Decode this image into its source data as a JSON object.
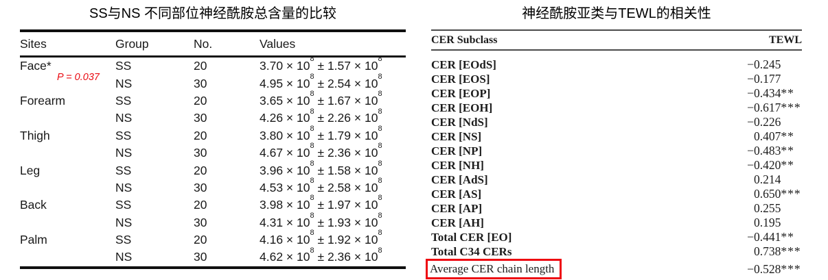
{
  "left_table": {
    "title": "SS与NS 不同部位神经酰胺总含量的比较",
    "columns": [
      "Sites",
      "Group",
      "No.",
      "Values"
    ],
    "notation": {
      "times_base": " × 10",
      "exponent": "8",
      "plus_minus": " ± "
    },
    "rows": [
      {
        "site": "Face*",
        "p_note": "P = 0.037",
        "group": "SS",
        "no": "20",
        "mean": "3.70",
        "sd": "1.57"
      },
      {
        "site": "",
        "group": "NS",
        "no": "30",
        "mean": "4.95",
        "sd": "2.54"
      },
      {
        "site": "Forearm",
        "group": "SS",
        "no": "20",
        "mean": "3.65",
        "sd": "1.67"
      },
      {
        "site": "",
        "group": "NS",
        "no": "30",
        "mean": "4.26",
        "sd": "2.26"
      },
      {
        "site": "Thigh",
        "group": "SS",
        "no": "20",
        "mean": "3.80",
        "sd": "1.79"
      },
      {
        "site": "",
        "group": "NS",
        "no": "30",
        "mean": "4.67",
        "sd": "2.36"
      },
      {
        "site": "Leg",
        "group": "SS",
        "no": "20",
        "mean": "3.96",
        "sd": "1.58"
      },
      {
        "site": "",
        "group": "NS",
        "no": "30",
        "mean": "4.53",
        "sd": "2.58"
      },
      {
        "site": "Back",
        "group": "SS",
        "no": "20",
        "mean": "3.98",
        "sd": "1.97"
      },
      {
        "site": "",
        "group": "NS",
        "no": "30",
        "mean": "4.31",
        "sd": "1.93"
      },
      {
        "site": "Palm",
        "group": "SS",
        "no": "20",
        "mean": "4.16",
        "sd": "1.92"
      },
      {
        "site": "",
        "group": "NS",
        "no": "30",
        "mean": "4.62",
        "sd": "2.36"
      }
    ],
    "annotation_color": "#ea0a12"
  },
  "right_table": {
    "title": "神经酰胺亚类与TEWL的相关性",
    "columns": [
      "CER Subclass",
      "TEWL"
    ],
    "rows": [
      {
        "label": "CER [EOdS]",
        "sign": "−",
        "value": "0.245",
        "stars": ""
      },
      {
        "label": "CER [EOS]",
        "sign": "−",
        "value": "0.177",
        "stars": ""
      },
      {
        "label": "CER [EOP]",
        "sign": "−",
        "value": "0.434",
        "stars": "**"
      },
      {
        "label": "CER [EOH]",
        "sign": "−",
        "value": "0.617",
        "stars": "***"
      },
      {
        "label": "CER [NdS]",
        "sign": "−",
        "value": "0.226",
        "stars": ""
      },
      {
        "label": "CER [NS]",
        "sign": "",
        "value": "0.407",
        "stars": "**"
      },
      {
        "label": "CER [NP]",
        "sign": "−",
        "value": "0.483",
        "stars": "**"
      },
      {
        "label": "CER [NH]",
        "sign": "−",
        "value": "0.420",
        "stars": "**"
      },
      {
        "label": "CER [AdS]",
        "sign": "",
        "value": "0.214",
        "stars": ""
      },
      {
        "label": "CER [AS]",
        "sign": "",
        "value": "0.650",
        "stars": "***"
      },
      {
        "label": "CER [AP]",
        "sign": "",
        "value": "0.255",
        "stars": ""
      },
      {
        "label": "CER [AH]",
        "sign": "",
        "value": "0.195",
        "stars": ""
      },
      {
        "label": "Total CER [EO]",
        "sign": "−",
        "value": "0.441",
        "stars": "**"
      },
      {
        "label": "Total C34 CERs",
        "sign": "",
        "value": "0.738",
        "stars": "***"
      },
      {
        "label": "Average CER chain length",
        "sign": "−",
        "value": "0.528",
        "stars": "***",
        "highlighted": true,
        "bold": false
      }
    ],
    "highlight_color": "#ee0610"
  }
}
